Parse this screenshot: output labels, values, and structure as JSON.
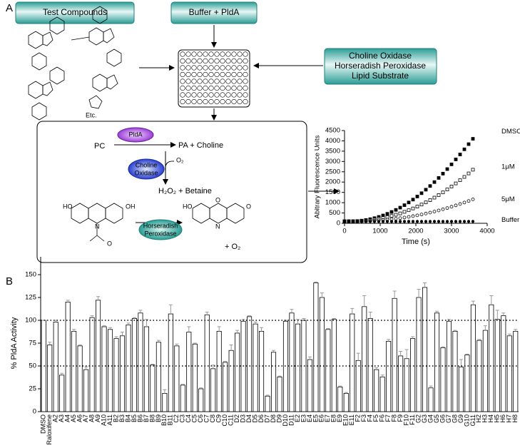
{
  "diagram": {
    "panel_a": "A",
    "panel_b": "B",
    "boxes": {
      "test_compounds": "Test Compounds",
      "buffer": "Buffer + PldA",
      "reagents": [
        "Choline Oxidase",
        "Horseradish Peroxidase",
        "Lipid Substrate"
      ]
    },
    "compounds_note": "Etc.",
    "reaction": {
      "pc": "PC",
      "enzyme1": "PldA",
      "product1": "PA + Choline",
      "enzyme2": [
        "Choline",
        "Oxidase"
      ],
      "o2_in": "O₂",
      "product2": "H₂O₂ + Betaine",
      "enzyme3": [
        "Horseradish",
        "Peroxidase"
      ],
      "o2_out": "+ O₂",
      "atoms": [
        "HO",
        "OH",
        "N",
        "O",
        "HO",
        "O",
        "N",
        "O"
      ]
    }
  },
  "chart_data": [
    {
      "type": "scatter",
      "x_label": "Time (s)",
      "y_label": "Abitrary Fluorescence Units",
      "x": [
        0,
        120,
        240,
        360,
        480,
        600,
        720,
        840,
        960,
        1080,
        1200,
        1320,
        1440,
        1560,
        1680,
        1800,
        1920,
        2040,
        2160,
        2280,
        2400,
        2520,
        2640,
        2760,
        2880,
        3000,
        3120,
        3240,
        3360,
        3480,
        3600
      ],
      "xlim": [
        0,
        4000
      ],
      "xticks": [
        0,
        1000,
        2000,
        3000,
        4000
      ],
      "ylim": [
        0,
        4500
      ],
      "yticks": [
        0,
        500,
        1000,
        1500,
        2000,
        2500,
        3000,
        3500,
        4000,
        4500
      ],
      "series": [
        {
          "name": "DMSO",
          "color": "#000000",
          "marker": "square",
          "values": [
            100,
            100,
            100,
            110,
            130,
            160,
            200,
            250,
            310,
            380,
            460,
            550,
            650,
            760,
            880,
            1010,
            1150,
            1300,
            1460,
            1630,
            1810,
            2000,
            2200,
            2410,
            2630,
            2860,
            3100,
            3340,
            3590,
            3840,
            4100
          ]
        },
        {
          "name": "1μM",
          "color": "#000000",
          "marker": "open-square",
          "values": [
            100,
            100,
            100,
            105,
            115,
            130,
            150,
            180,
            215,
            255,
            300,
            355,
            415,
            480,
            555,
            635,
            720,
            810,
            910,
            1015,
            1125,
            1245,
            1370,
            1500,
            1640,
            1785,
            1935,
            2090,
            2250,
            2420,
            2600
          ]
        },
        {
          "name": "5μM",
          "color": "#000000",
          "marker": "open-circle",
          "values": [
            100,
            100,
            100,
            102,
            106,
            112,
            120,
            132,
            146,
            162,
            180,
            200,
            224,
            250,
            280,
            312,
            348,
            386,
            428,
            472,
            520,
            570,
            624,
            680,
            740,
            802,
            868,
            936,
            1008,
            1082,
            1160
          ]
        },
        {
          "name": "Buffer",
          "color": "#000000",
          "marker": "circle",
          "values": [
            90,
            90,
            90,
            90,
            90,
            90,
            90,
            90,
            90,
            90,
            90,
            90,
            90,
            90,
            90,
            90,
            90,
            90,
            90,
            90,
            90,
            90,
            90,
            90,
            90,
            90,
            90,
            90,
            90,
            90,
            90
          ]
        }
      ]
    },
    {
      "type": "bar",
      "y_label": "% PldA Activity",
      "color": "#ffffff",
      "error_color": "#999999",
      "categories": [
        "DMSO",
        "Raloxifene",
        "A2",
        "A3",
        "A4",
        "A5",
        "A6",
        "A7",
        "A8",
        "A9",
        "A10",
        "A11",
        "B2",
        "B3",
        "B4",
        "B5",
        "B6",
        "B7",
        "B8",
        "B9",
        "B10",
        "B11",
        "C2",
        "C3",
        "C4",
        "C5",
        "C6",
        "C7",
        "C8",
        "C9",
        "C10",
        "C11",
        "D2",
        "D3",
        "D4",
        "D5",
        "D6",
        "D7",
        "D8",
        "D9",
        "D10",
        "D11",
        "E2",
        "E3",
        "E4",
        "E5",
        "E6",
        "E7",
        "E8",
        "E9",
        "E10",
        "E11",
        "F2",
        "F3",
        "F4",
        "F5",
        "F6",
        "F7",
        "F8",
        "F9",
        "F10",
        "F11",
        "G2",
        "G3",
        "G4",
        "G5",
        "G6",
        "G7",
        "G8",
        "G9",
        "G10",
        "G11",
        "H2",
        "H3",
        "H4",
        "H5",
        "H6",
        "H7",
        "H8"
      ],
      "values": [
        100,
        73,
        98,
        40,
        120,
        88,
        72,
        46,
        103,
        122,
        93,
        90,
        80,
        83,
        95,
        102,
        108,
        93,
        51,
        76,
        20,
        107,
        72,
        29,
        87,
        74,
        25,
        106,
        47,
        88,
        54,
        67,
        86,
        99,
        104,
        96,
        88,
        17,
        65,
        38,
        99,
        108,
        96,
        100,
        57,
        141,
        125,
        90,
        101,
        27,
        20,
        107,
        56,
        115,
        102,
        46,
        38,
        77,
        124,
        61,
        58,
        80,
        125,
        136,
        26,
        108,
        70,
        99,
        88,
        49,
        62,
        117,
        78,
        89,
        117,
        101,
        105,
        83,
        88
      ],
      "errors": [
        0,
        3,
        2,
        2,
        2,
        2,
        1,
        3,
        2,
        4,
        1,
        2,
        2,
        4,
        2,
        1,
        3,
        8,
        1,
        2,
        4,
        10,
        2,
        1,
        6,
        1,
        1,
        3,
        4,
        5,
        1,
        6,
        3,
        2,
        1,
        2,
        4,
        1,
        2,
        1,
        1,
        4,
        5,
        2,
        3,
        1,
        5,
        1,
        1,
        1,
        1,
        6,
        8,
        12,
        7,
        2,
        2,
        2,
        8,
        5,
        10,
        2,
        9,
        5,
        2,
        2,
        1,
        2,
        1,
        8,
        1,
        4,
        1,
        5,
        10,
        10,
        3,
        2,
        2
      ],
      "ylim": [
        0,
        150
      ],
      "yticks": [
        0,
        25,
        50,
        75,
        100,
        125,
        150
      ],
      "reference_lines": [
        100,
        50
      ]
    }
  ]
}
